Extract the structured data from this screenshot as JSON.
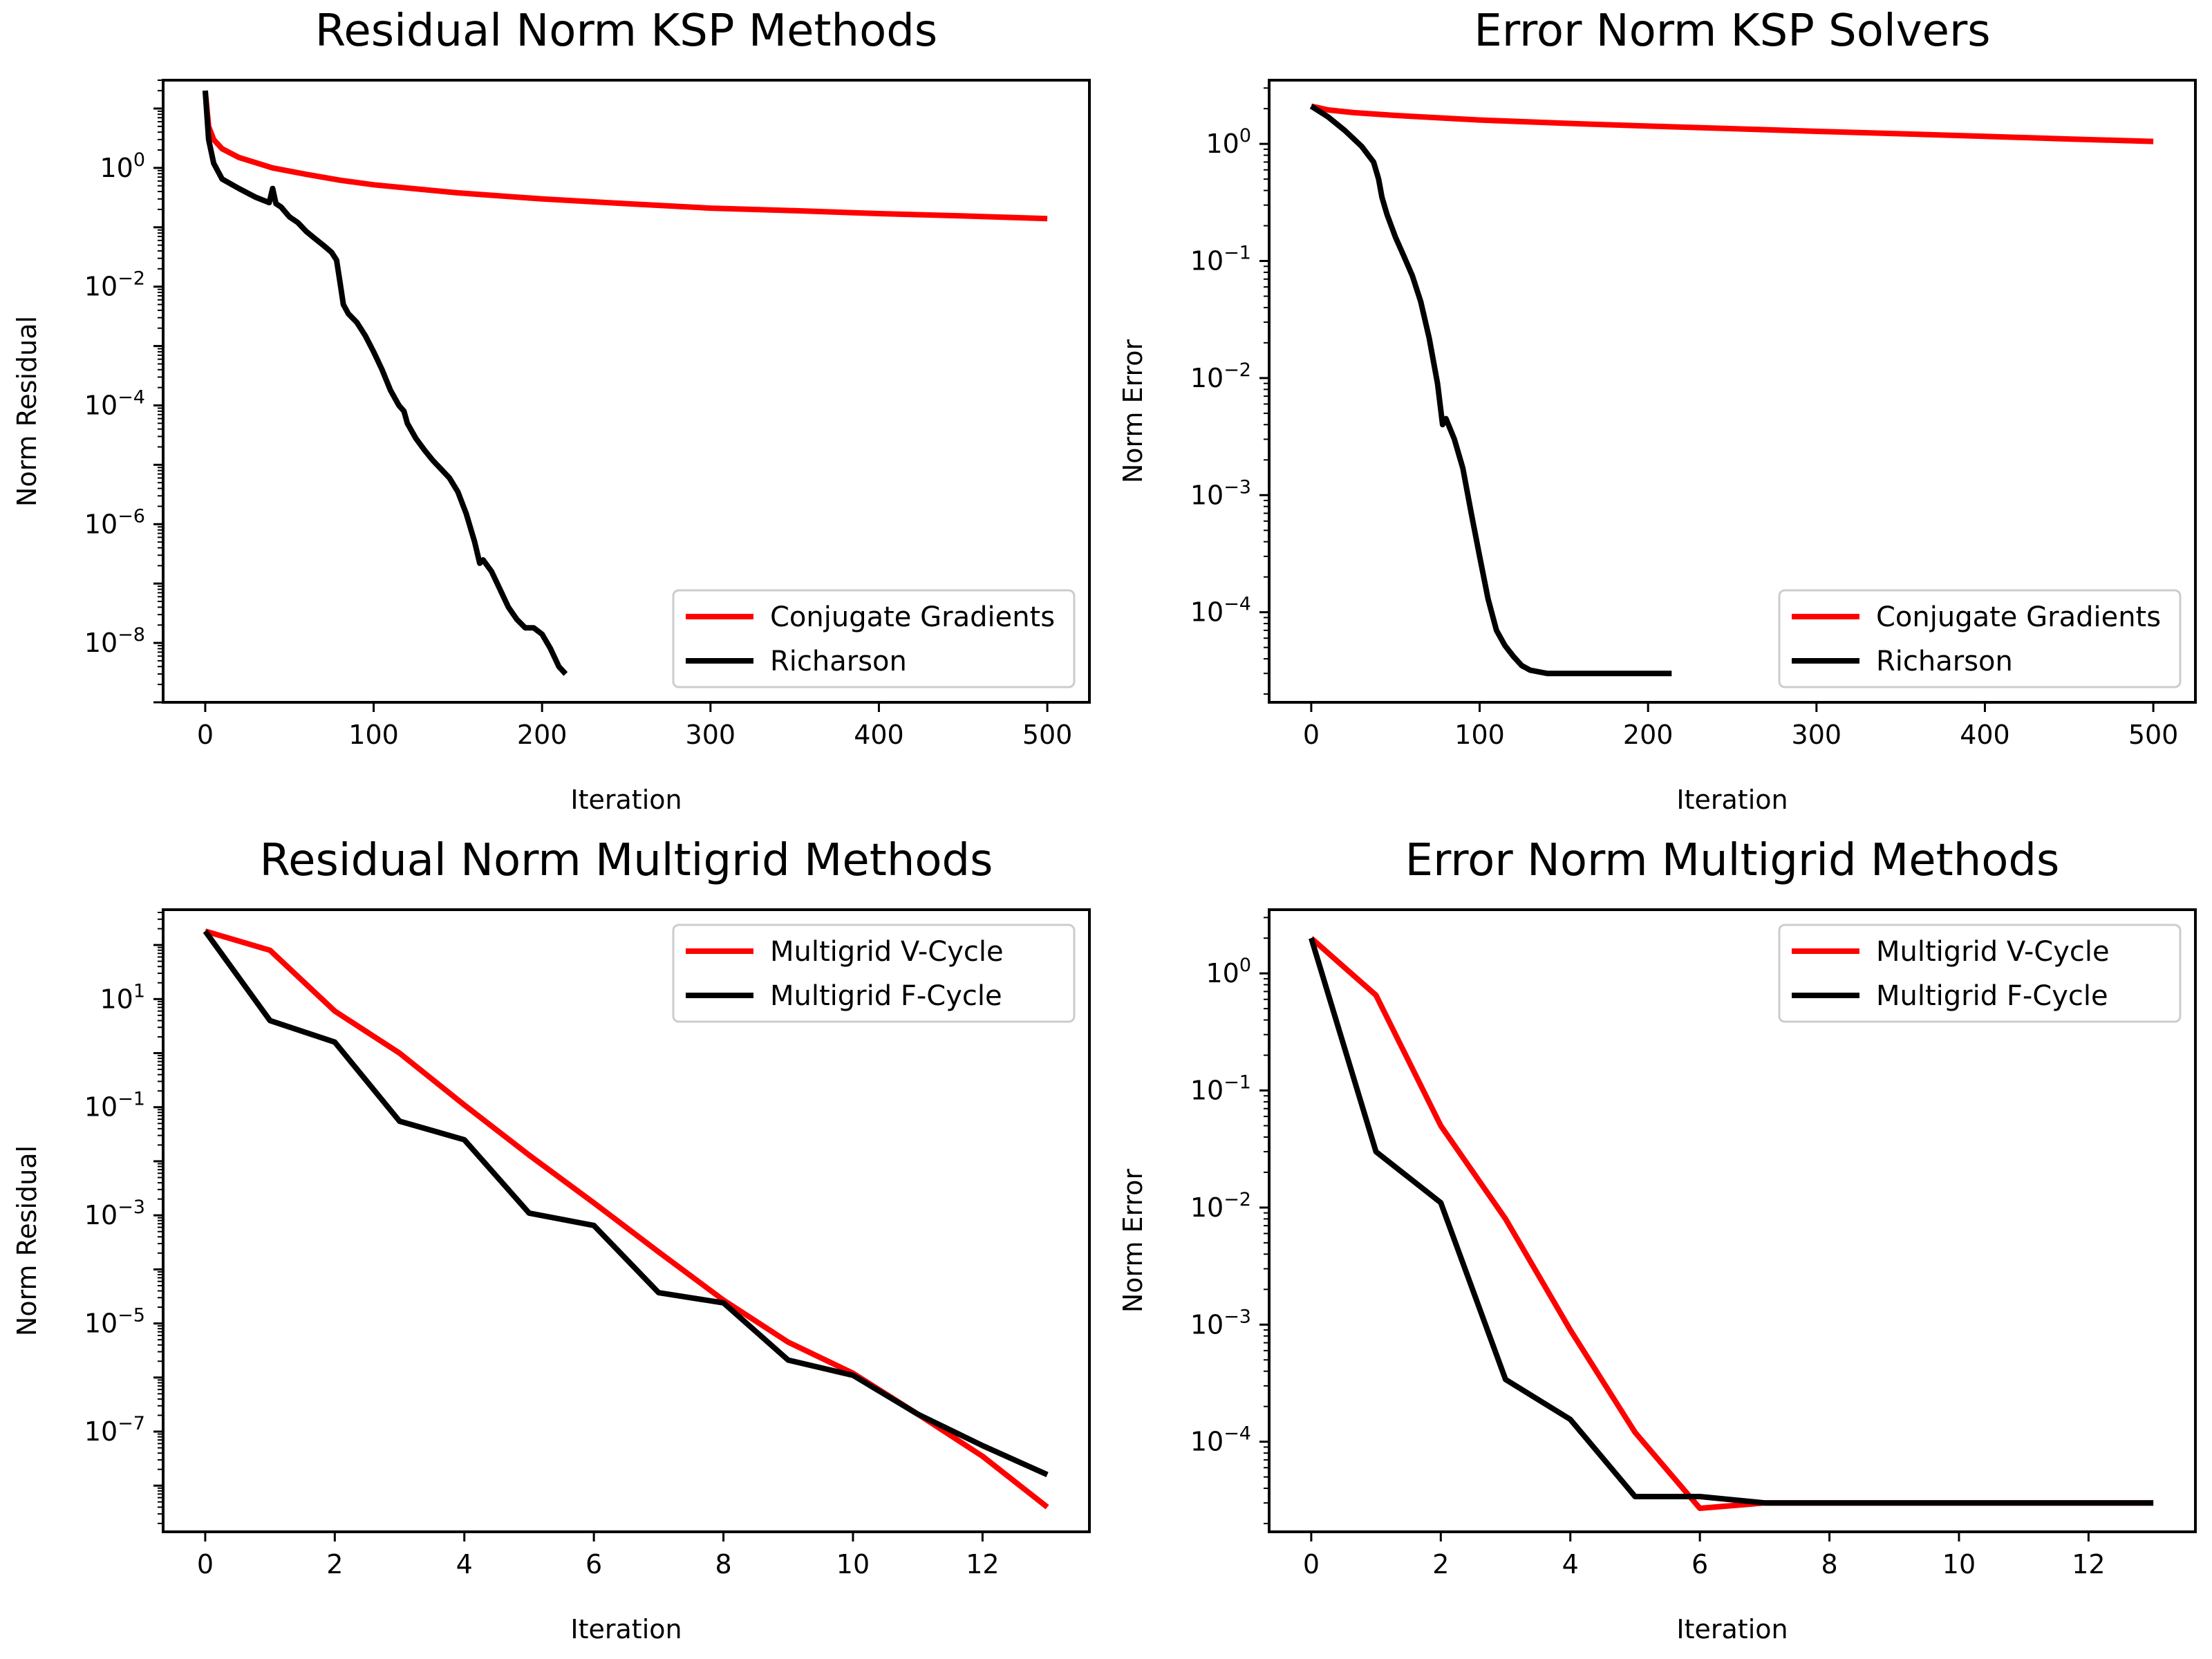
{
  "colors": {
    "series_a": "#ff0000",
    "series_b": "#000000"
  },
  "chart_data": [
    {
      "id": "p0",
      "type": "line",
      "title": "Residual Norm KSP Methods",
      "xlabel": "Iteration",
      "ylabel": "Norm Residual",
      "yscale": "log",
      "xlim": [
        -25,
        525
      ],
      "ylim": [
        1e-09,
        30
      ],
      "xticks": [
        0,
        100,
        200,
        300,
        400,
        500
      ],
      "yticks": [
        1,
        0.01,
        0.0001,
        1e-06,
        1e-08
      ],
      "ytick_labels": [
        [
          "10",
          "0"
        ],
        [
          "10",
          "−2"
        ],
        [
          "10",
          "−4"
        ],
        [
          "10",
          "−6"
        ],
        [
          "10",
          "−8"
        ]
      ],
      "legend_loc": "lower right",
      "series": [
        {
          "name": "Conjugate Gradients",
          "color": "#ff0000",
          "x": [
            0,
            2,
            5,
            10,
            20,
            40,
            60,
            80,
            100,
            150,
            200,
            250,
            300,
            350,
            400,
            450,
            500
          ],
          "y": [
            20,
            5,
            3,
            2.1,
            1.5,
            1.0,
            0.78,
            0.62,
            0.52,
            0.38,
            0.3,
            0.25,
            0.21,
            0.19,
            0.17,
            0.155,
            0.14
          ]
        },
        {
          "name": "Richarson",
          "color": "#000000",
          "x": [
            0,
            2,
            5,
            10,
            20,
            30,
            38,
            40,
            42,
            45,
            50,
            55,
            60,
            65,
            70,
            75,
            78,
            80,
            82,
            85,
            90,
            95,
            100,
            105,
            110,
            115,
            118,
            120,
            125,
            130,
            135,
            140,
            145,
            150,
            155,
            160,
            163,
            165,
            170,
            175,
            180,
            185,
            190,
            195,
            200,
            205,
            210,
            214
          ],
          "y": [
            20,
            3,
            1.2,
            0.65,
            0.45,
            0.32,
            0.26,
            0.45,
            0.25,
            0.22,
            0.15,
            0.12,
            0.085,
            0.065,
            0.05,
            0.038,
            0.028,
            0.012,
            0.005,
            0.0035,
            0.0025,
            0.0015,
            0.0008,
            0.0004,
            0.00018,
            0.0001,
            8e-05,
            5e-05,
            2.8e-05,
            1.8e-05,
            1.2e-05,
            8.5e-06,
            6e-06,
            3.5e-06,
            1.5e-06,
            5e-07,
            2.2e-07,
            2.5e-07,
            1.6e-07,
            8e-08,
            4e-08,
            2.5e-08,
            1.8e-08,
            1.8e-08,
            1.4e-08,
            8e-09,
            4e-09,
            3e-09
          ]
        }
      ]
    },
    {
      "id": "p1",
      "type": "line",
      "title": "Error Norm KSP Solvers",
      "xlabel": "Iteration",
      "ylabel": "Norm Error",
      "yscale": "log",
      "xlim": [
        -25,
        525
      ],
      "ylim": [
        1.7e-05,
        3.5
      ],
      "xticks": [
        0,
        100,
        200,
        300,
        400,
        500
      ],
      "yticks": [
        1,
        0.1,
        0.01,
        0.001,
        0.0001
      ],
      "ytick_labels": [
        [
          "10",
          "0"
        ],
        [
          "10",
          "−1"
        ],
        [
          "10",
          "−2"
        ],
        [
          "10",
          "−3"
        ],
        [
          "10",
          "−4"
        ]
      ],
      "legend_loc": "lower right",
      "series": [
        {
          "name": "Conjugate Gradients",
          "color": "#ff0000",
          "x": [
            0,
            10,
            25,
            50,
            100,
            150,
            200,
            250,
            300,
            350,
            400,
            450,
            500
          ],
          "y": [
            2.1,
            1.95,
            1.85,
            1.75,
            1.6,
            1.5,
            1.42,
            1.35,
            1.28,
            1.22,
            1.16,
            1.1,
            1.05
          ]
        },
        {
          "name": "Richarson",
          "color": "#000000",
          "x": [
            0,
            10,
            20,
            30,
            37,
            40,
            42,
            45,
            50,
            55,
            60,
            65,
            70,
            75,
            78,
            80,
            85,
            90,
            95,
            100,
            105,
            110,
            115,
            120,
            125,
            130,
            140,
            150,
            170,
            214
          ],
          "y": [
            2.1,
            1.7,
            1.3,
            0.95,
            0.7,
            0.5,
            0.35,
            0.25,
            0.16,
            0.11,
            0.075,
            0.045,
            0.022,
            0.009,
            0.004,
            0.0045,
            0.003,
            0.0017,
            0.0007,
            0.0003,
            0.00013,
            7e-05,
            5.2e-05,
            4.2e-05,
            3.5e-05,
            3.2e-05,
            3e-05,
            3e-05,
            3e-05,
            3e-05
          ]
        }
      ]
    },
    {
      "id": "p2",
      "type": "line",
      "title": "Residual Norm Multigrid Methods",
      "xlabel": "Iteration",
      "ylabel": "Norm Residual",
      "yscale": "log",
      "xlim": [
        -0.65,
        13.65
      ],
      "ylim": [
        1.4e-09,
        450
      ],
      "xticks": [
        0,
        2,
        4,
        6,
        8,
        10,
        12
      ],
      "yticks": [
        10,
        0.1,
        0.001,
        1e-05,
        1e-07
      ],
      "ytick_labels": [
        [
          "10",
          "1"
        ],
        [
          "10",
          "−1"
        ],
        [
          "10",
          "−3"
        ],
        [
          "10",
          "−5"
        ],
        [
          "10",
          "−7"
        ]
      ],
      "legend_loc": "upper right",
      "series": [
        {
          "name": "Multigrid V-Cycle",
          "color": "#ff0000",
          "x": [
            0,
            1,
            2,
            3,
            4,
            5,
            6,
            7,
            8,
            9,
            10,
            11,
            12,
            13
          ],
          "y": [
            180,
            80,
            6,
            1.0,
            0.11,
            0.013,
            0.0017,
            0.00021,
            2.7e-05,
            4.5e-06,
            1.2e-06,
            2.1e-07,
            3.5e-08,
            4e-09
          ]
        },
        {
          "name": "Multigrid F-Cycle",
          "color": "#000000",
          "x": [
            0,
            1,
            2,
            3,
            4,
            5,
            6,
            7,
            8,
            9,
            10,
            11,
            12,
            13
          ],
          "y": [
            180,
            4,
            1.6,
            0.055,
            0.025,
            0.0011,
            0.00065,
            3.7e-05,
            2.4e-05,
            2.1e-06,
            1.1e-06,
            2.1e-07,
            5.5e-08,
            1.6e-08
          ]
        }
      ]
    },
    {
      "id": "p3",
      "type": "line",
      "title": "Error Norm Multigrid Methods",
      "xlabel": "Iteration",
      "ylabel": "Norm Error",
      "yscale": "log",
      "xlim": [
        -0.65,
        13.65
      ],
      "ylim": [
        1.7e-05,
        3.5
      ],
      "xticks": [
        0,
        2,
        4,
        6,
        8,
        10,
        12
      ],
      "yticks": [
        1,
        0.1,
        0.01,
        0.001,
        0.0001
      ],
      "ytick_labels": [
        [
          "10",
          "0"
        ],
        [
          "10",
          "−1"
        ],
        [
          "10",
          "−2"
        ],
        [
          "10",
          "−3"
        ],
        [
          "10",
          "−4"
        ]
      ],
      "legend_loc": "upper right",
      "series": [
        {
          "name": "Multigrid V-Cycle",
          "color": "#ff0000",
          "x": [
            0,
            1,
            2,
            3,
            4,
            5,
            6,
            7,
            8,
            9,
            10,
            11,
            12,
            13
          ],
          "y": [
            2.0,
            0.65,
            0.05,
            0.008,
            0.0009,
            0.00012,
            2.7e-05,
            3e-05,
            3e-05,
            3e-05,
            3e-05,
            3e-05,
            3e-05,
            3e-05
          ]
        },
        {
          "name": "Multigrid F-Cycle",
          "color": "#000000",
          "x": [
            0,
            1,
            2,
            3,
            4,
            5,
            6,
            7,
            8,
            9,
            10,
            11,
            12,
            13
          ],
          "y": [
            2.0,
            0.03,
            0.011,
            0.00034,
            0.000155,
            3.4e-05,
            3.4e-05,
            3e-05,
            3e-05,
            3e-05,
            3e-05,
            3e-05,
            3e-05,
            3e-05
          ]
        }
      ]
    }
  ]
}
